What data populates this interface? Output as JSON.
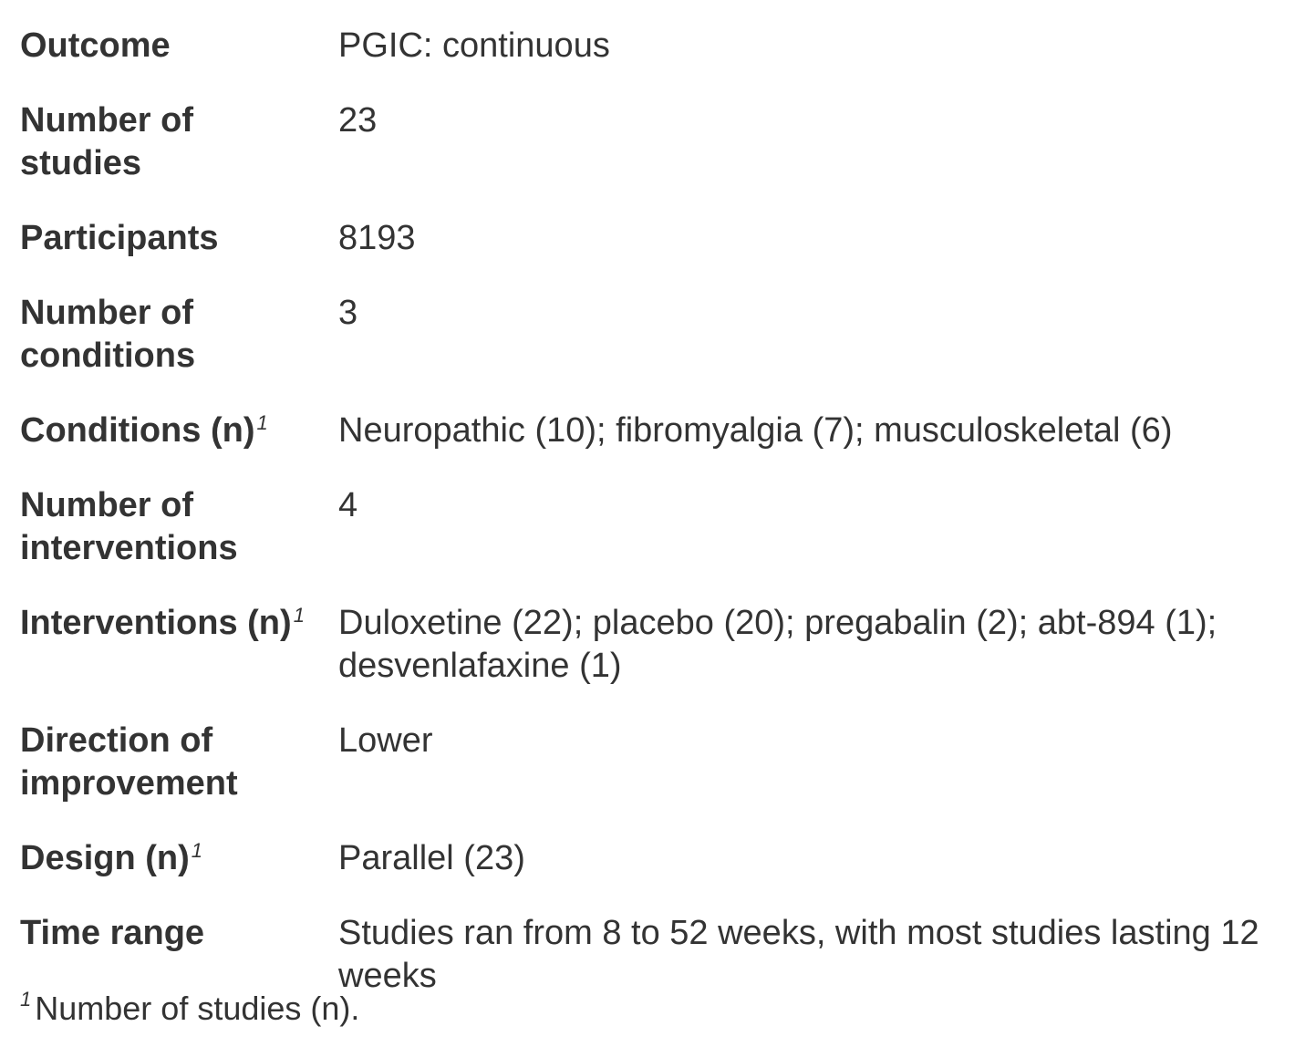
{
  "rows": [
    {
      "label": "Outcome",
      "value": "PGIC: continuous",
      "footnote_mark": ""
    },
    {
      "label": "Number of studies",
      "value": "23",
      "footnote_mark": ""
    },
    {
      "label": "Participants",
      "value": "8193",
      "footnote_mark": ""
    },
    {
      "label": "Number of conditions",
      "value": "3",
      "footnote_mark": ""
    },
    {
      "label": "Conditions (n)",
      "value": "Neuropathic (10); fibromyalgia (7); musculoskeletal (6)",
      "footnote_mark": "1"
    },
    {
      "label": "Number of interventions",
      "value": "4",
      "footnote_mark": ""
    },
    {
      "label": "Interventions (n)",
      "value": "Duloxetine (22); placebo (20); pregabalin (2); abt-894 (1); desvenlafaxine (1)",
      "footnote_mark": "1"
    },
    {
      "label": "Direction of improvement",
      "value": "Lower",
      "footnote_mark": ""
    },
    {
      "label": "Design (n)",
      "value": "Parallel (23)",
      "footnote_mark": "1"
    },
    {
      "label": "Time range",
      "value": "Studies ran from 8 to 52 weeks, with most studies lasting 12 weeks",
      "footnote_mark": ""
    }
  ],
  "footnote": {
    "mark": "1",
    "text": "Number of studies (n)."
  }
}
